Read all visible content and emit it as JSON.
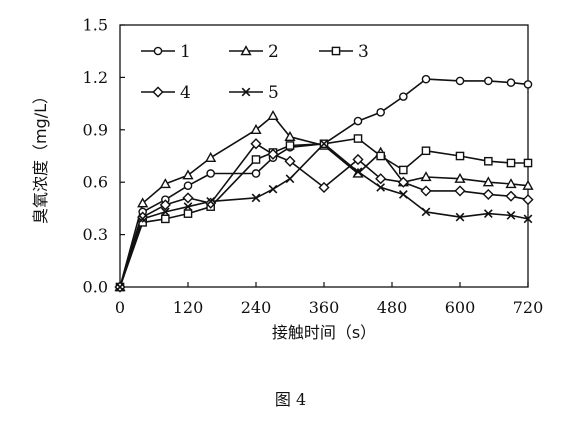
{
  "caption": "图 4",
  "chart_data": {
    "type": "line",
    "title": "",
    "xlabel": "接触时间（s）",
    "ylabel": "臭氧浓度（mg/L）",
    "xlim": [
      0,
      720
    ],
    "ylim": [
      0,
      1.5
    ],
    "xticks": [
      0,
      120,
      240,
      360,
      480,
      600,
      720
    ],
    "yticks": [
      0.0,
      0.3,
      0.6,
      0.9,
      1.2,
      1.5
    ],
    "ytick_labels": [
      "0.0",
      "0.3",
      "0.6",
      "0.9",
      "1.2",
      "1.5"
    ],
    "grid": false,
    "legend_position": "top-left, inside plot, 3 columns",
    "series": [
      {
        "name": "1",
        "marker": "circle",
        "x": [
          0,
          40,
          80,
          120,
          160,
          240,
          270,
          300,
          360,
          420,
          460,
          500,
          540,
          600,
          650,
          690,
          720
        ],
        "y": [
          0,
          0.43,
          0.5,
          0.58,
          0.65,
          0.65,
          0.74,
          0.8,
          0.82,
          0.95,
          1.0,
          1.09,
          1.19,
          1.18,
          1.18,
          1.17,
          1.16
        ]
      },
      {
        "name": "2",
        "marker": "triangle",
        "x": [
          0,
          40,
          80,
          120,
          160,
          240,
          270,
          300,
          360,
          420,
          460,
          500,
          540,
          600,
          650,
          690,
          720
        ],
        "y": [
          0,
          0.48,
          0.59,
          0.64,
          0.74,
          0.9,
          0.98,
          0.86,
          0.81,
          0.65,
          0.77,
          0.6,
          0.63,
          0.62,
          0.6,
          0.59,
          0.58
        ]
      },
      {
        "name": "3",
        "marker": "square",
        "x": [
          0,
          40,
          80,
          120,
          160,
          240,
          270,
          300,
          360,
          420,
          460,
          500,
          540,
          600,
          650,
          690,
          720
        ],
        "y": [
          0,
          0.37,
          0.39,
          0.42,
          0.46,
          0.73,
          0.77,
          0.81,
          0.82,
          0.85,
          0.75,
          0.67,
          0.78,
          0.75,
          0.72,
          0.71,
          0.71
        ]
      },
      {
        "name": "4",
        "marker": "diamond",
        "x": [
          0,
          40,
          80,
          120,
          160,
          240,
          270,
          300,
          360,
          420,
          460,
          500,
          540,
          600,
          650,
          690,
          720
        ],
        "y": [
          0,
          0.4,
          0.47,
          0.51,
          0.48,
          0.82,
          0.76,
          0.72,
          0.57,
          0.73,
          0.62,
          0.6,
          0.55,
          0.55,
          0.53,
          0.52,
          0.5
        ]
      },
      {
        "name": "5",
        "marker": "x",
        "x": [
          0,
          40,
          80,
          120,
          160,
          240,
          270,
          300,
          360,
          420,
          460,
          500,
          540,
          600,
          650,
          690,
          720
        ],
        "y": [
          0,
          0.39,
          0.43,
          0.46,
          0.49,
          0.51,
          0.56,
          0.62,
          0.82,
          0.66,
          0.57,
          0.53,
          0.43,
          0.4,
          0.42,
          0.41,
          0.39
        ]
      }
    ]
  }
}
